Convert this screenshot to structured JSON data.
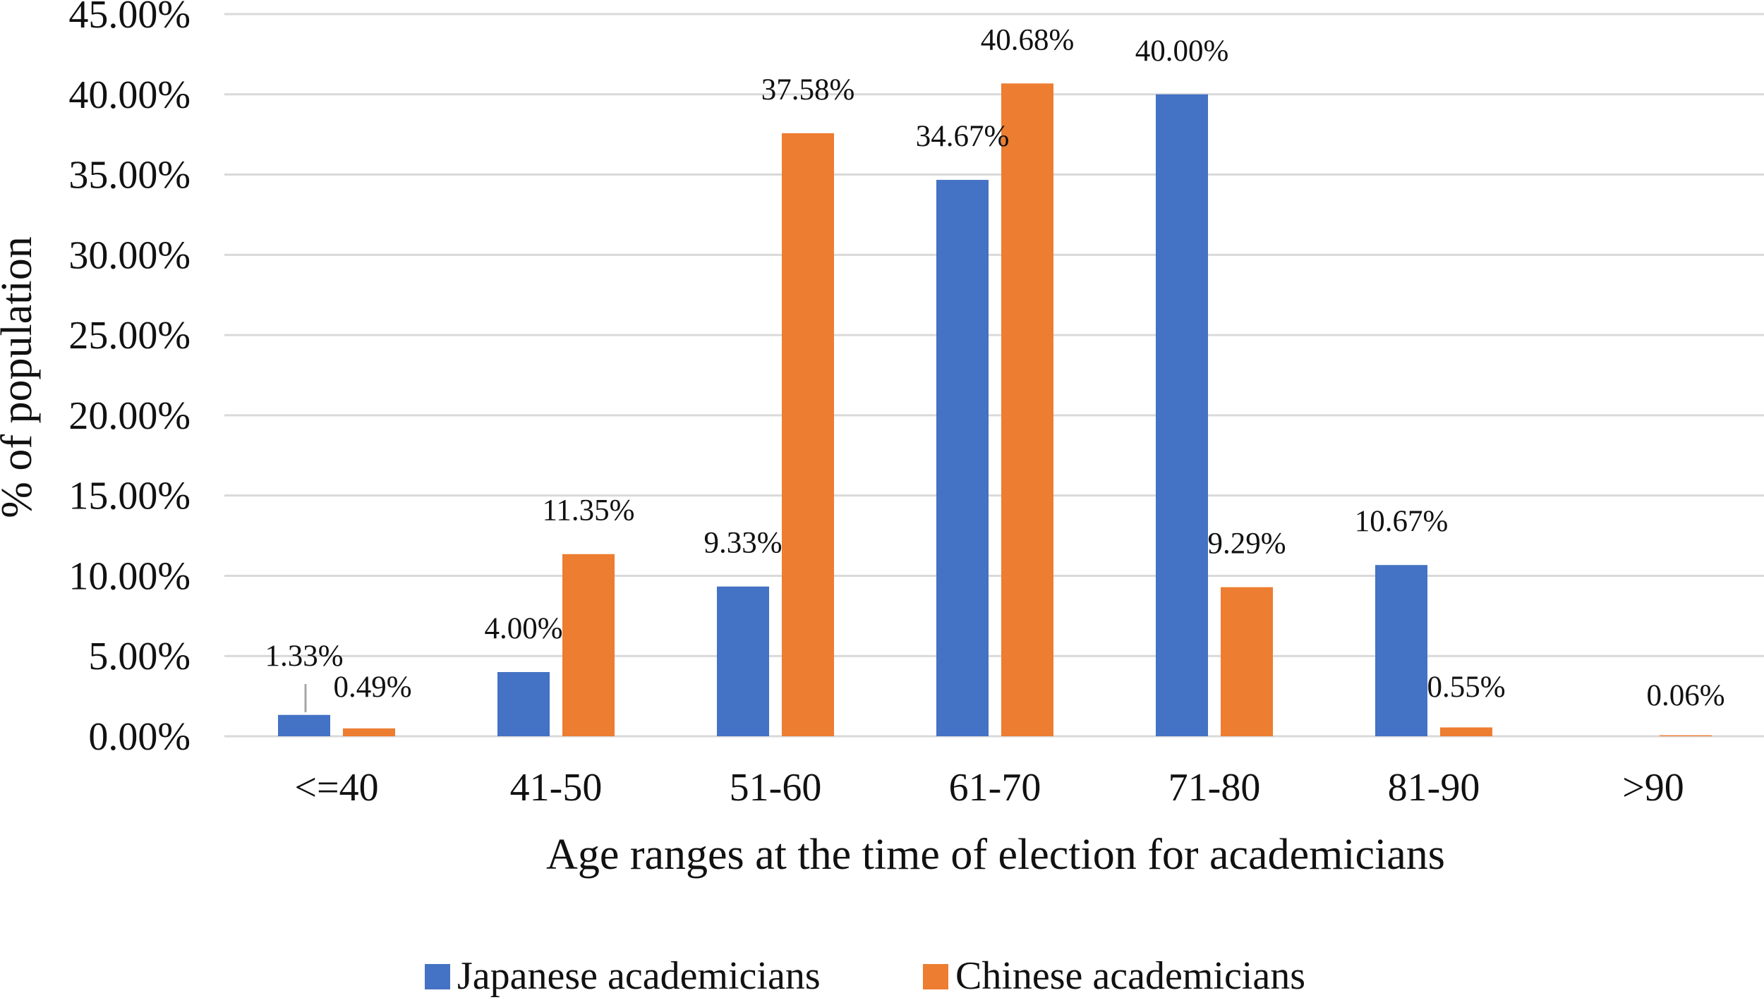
{
  "chart_data": {
    "type": "bar",
    "xlabel": "Age ranges at the time of election for academicians",
    "ylabel": "% of population",
    "categories": [
      "<=40",
      "41-50",
      "51-60",
      "61-70",
      "71-80",
      "81-90",
      ">90"
    ],
    "ylim": [
      0,
      45
    ],
    "yticks": [
      "0.00%",
      "5.00%",
      "10.00%",
      "15.00%",
      "20.00%",
      "25.00%",
      "30.00%",
      "35.00%",
      "40.00%",
      "45.00%"
    ],
    "grid": true,
    "legend_position": "bottom",
    "series": [
      {
        "name": "Japanese academicians",
        "color": "#4472C4",
        "values": [
          1.33,
          4.0,
          9.33,
          34.67,
          40.0,
          10.67,
          null
        ],
        "labels": [
          "1.33%",
          "4.00%",
          "9.33%",
          "34.67%",
          "40.00%",
          "10.67%",
          null
        ]
      },
      {
        "name": "Chinese academicians",
        "color": "#ED7D31",
        "values": [
          0.49,
          11.35,
          37.58,
          40.68,
          9.29,
          0.55,
          0.06
        ],
        "labels": [
          "0.49%",
          "11.35%",
          "37.58%",
          "40.68%",
          "9.29%",
          "0.55%",
          "0.06%"
        ]
      }
    ]
  }
}
